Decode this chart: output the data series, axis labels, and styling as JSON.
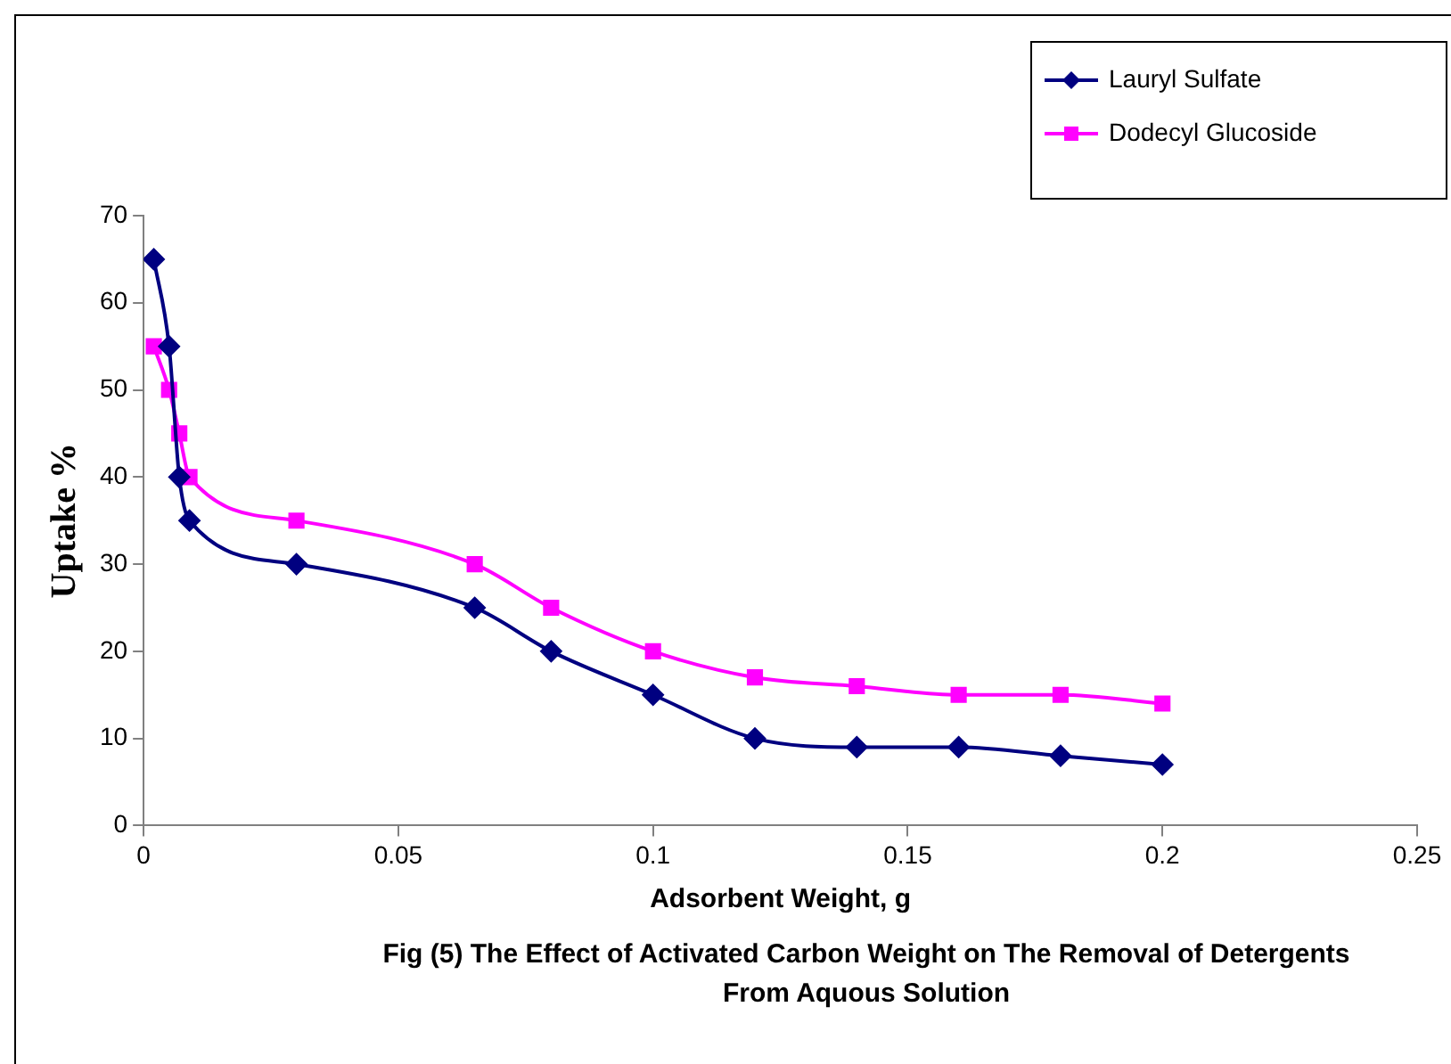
{
  "chart_data": {
    "type": "line",
    "xlabel": "Adsorbent Weight, g",
    "ylabel": "Uptake %",
    "annotations": [
      "Fig (5) The Effect of Activated Carbon Weight on The Removal of Detergents From Aquous Solution"
    ],
    "series": [
      {
        "name": "Lauryl Sulfate",
        "color": "#000080",
        "marker": "diamond",
        "x": [
          0.002,
          0.005,
          0.007,
          0.009,
          0.03,
          0.065,
          0.08,
          0.1,
          0.12,
          0.14,
          0.16,
          0.18,
          0.2
        ],
        "values": [
          65,
          55,
          40,
          35,
          30,
          25,
          20,
          15,
          10,
          9,
          9,
          8,
          7
        ]
      },
      {
        "name": "Dodecyl Glucoside",
        "color": "#ff00ff",
        "marker": "square",
        "x": [
          0.002,
          0.005,
          0.007,
          0.009,
          0.03,
          0.065,
          0.08,
          0.1,
          0.12,
          0.14,
          0.16,
          0.18,
          0.2
        ],
        "values": [
          55,
          50,
          45,
          40,
          35,
          30,
          25,
          20,
          17,
          16,
          15,
          15,
          14
        ]
      }
    ],
    "xlim": [
      0,
      0.25
    ],
    "xticks": [
      0,
      0.05,
      0.1,
      0.15,
      0.2,
      0.25
    ],
    "ylim": [
      0,
      70
    ],
    "yticks": [
      0,
      10,
      20,
      30,
      40,
      50,
      60,
      70
    ],
    "grid": false,
    "legend": "top right",
    "line_style": "solid"
  }
}
